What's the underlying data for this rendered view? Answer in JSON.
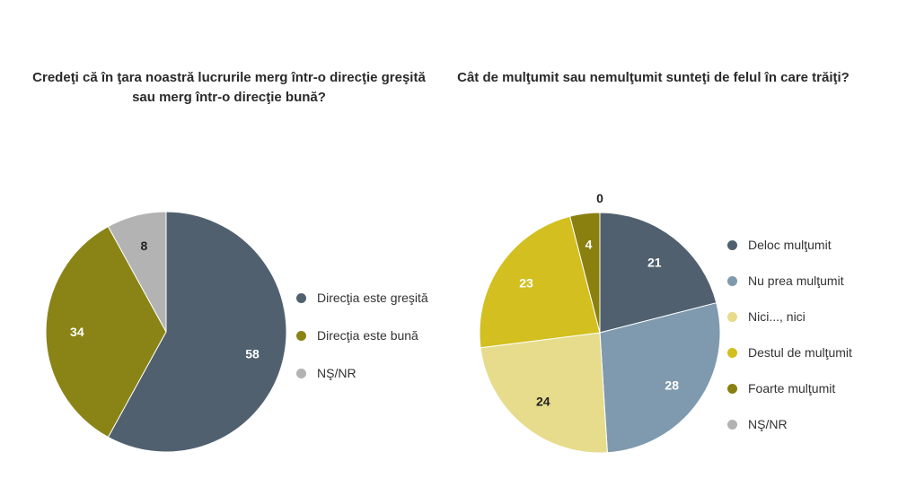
{
  "chart_data": [
    {
      "type": "pie",
      "title": "Credeţi că în ţara noastră lucrurile merg într-o direcţie greşită sau merg într-o direcţie bună?",
      "legend_position": "right",
      "slices": [
        {
          "label": "Direcţia este greşită",
          "value": 58,
          "color": "#50606f"
        },
        {
          "label": "Direcţia este bună",
          "value": 34,
          "color": "#8a8416"
        },
        {
          "label": "NŞ/NR",
          "value": 8,
          "color": "#b3b3b3"
        }
      ]
    },
    {
      "type": "pie",
      "title": "Cât de mulţumit sau nemulţumit sunteţi de felul în care trăiţi?",
      "legend_position": "right",
      "slices": [
        {
          "label": "Deloc mulţumit",
          "value": 21,
          "color": "#50606f"
        },
        {
          "label": "Nu prea mulţumit",
          "value": 28,
          "color": "#7f9aae"
        },
        {
          "label": "Nici..., nici",
          "value": 24,
          "color": "#e6dc8c"
        },
        {
          "label": "Destul de mulţumit",
          "value": 23,
          "color": "#d3bf1f"
        },
        {
          "label": "Foarte mulţumit",
          "value": 4,
          "color": "#8a8010"
        },
        {
          "label": "NŞ/NR",
          "value": 0,
          "color": "#b3b3b3"
        }
      ]
    }
  ]
}
